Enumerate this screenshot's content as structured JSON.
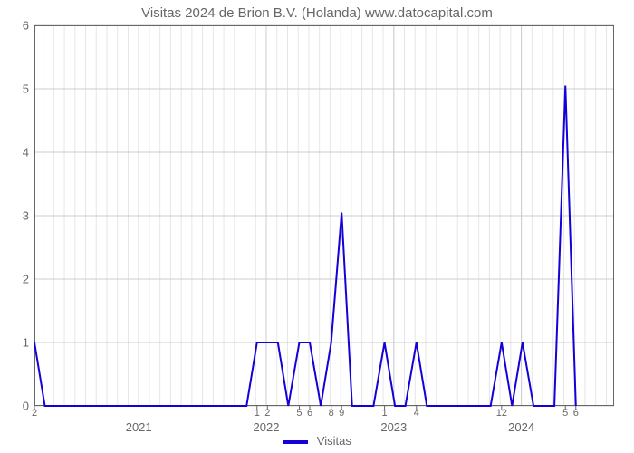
{
  "chart": {
    "type": "line",
    "title": "Visitas 2024 de Brion B.V. (Holanda) www.datocapital.com",
    "title_color": "#666666",
    "title_fontsize": 15,
    "background_color": "#ffffff",
    "plot_border_color": "#666666",
    "plot_border_width": 1,
    "grid": {
      "major_color": "#cccccc",
      "major_width": 1,
      "minor_color": "#e6e6e6",
      "minor_width": 1,
      "x_minor_per_year": 12
    },
    "y_axis": {
      "min": 0,
      "max": 6,
      "ticks": [
        0,
        1,
        2,
        3,
        4,
        5,
        6
      ],
      "tick_label_color": "#666666",
      "tick_fontsize": 13
    },
    "x_axis": {
      "year_ticks": [
        {
          "x": 0.18,
          "label": "2021"
        },
        {
          "x": 0.4,
          "label": "2022"
        },
        {
          "x": 0.62,
          "label": "2023"
        },
        {
          "x": 0.84,
          "label": "2024"
        }
      ],
      "month_ticks": [
        {
          "x": 0.0,
          "label": "2"
        },
        {
          "x": 0.384,
          "label": "1"
        },
        {
          "x": 0.402,
          "label": "2"
        },
        {
          "x": 0.457,
          "label": "5"
        },
        {
          "x": 0.475,
          "label": "6"
        },
        {
          "x": 0.512,
          "label": "8"
        },
        {
          "x": 0.53,
          "label": "9"
        },
        {
          "x": 0.604,
          "label": "1"
        },
        {
          "x": 0.659,
          "label": "4"
        },
        {
          "x": 0.806,
          "label": "12"
        },
        {
          "x": 0.916,
          "label": "5"
        },
        {
          "x": 0.934,
          "label": "6"
        }
      ],
      "tick_label_color": "#666666",
      "tick_fontsize": 11
    },
    "series": {
      "label": "Visitas",
      "color": "#1400d8",
      "line_width": 2,
      "points": [
        {
          "x": 0.0,
          "y": 1.0
        },
        {
          "x": 0.018,
          "y": 0.0
        },
        {
          "x": 0.366,
          "y": 0.0
        },
        {
          "x": 0.384,
          "y": 1.0
        },
        {
          "x": 0.42,
          "y": 1.0
        },
        {
          "x": 0.438,
          "y": 0.0
        },
        {
          "x": 0.457,
          "y": 1.0
        },
        {
          "x": 0.475,
          "y": 1.0
        },
        {
          "x": 0.494,
          "y": 0.0
        },
        {
          "x": 0.512,
          "y": 1.0
        },
        {
          "x": 0.53,
          "y": 3.05
        },
        {
          "x": 0.548,
          "y": 0.0
        },
        {
          "x": 0.585,
          "y": 0.0
        },
        {
          "x": 0.604,
          "y": 1.0
        },
        {
          "x": 0.622,
          "y": 0.0
        },
        {
          "x": 0.64,
          "y": 0.0
        },
        {
          "x": 0.659,
          "y": 1.0
        },
        {
          "x": 0.677,
          "y": 0.0
        },
        {
          "x": 0.787,
          "y": 0.0
        },
        {
          "x": 0.806,
          "y": 1.0
        },
        {
          "x": 0.824,
          "y": 0.0
        },
        {
          "x": 0.842,
          "y": 1.0
        },
        {
          "x": 0.861,
          "y": 0.0
        },
        {
          "x": 0.897,
          "y": 0.0
        },
        {
          "x": 0.916,
          "y": 5.05
        },
        {
          "x": 0.934,
          "y": 0.0
        }
      ]
    },
    "legend": {
      "position": "bottom-center",
      "swatch_width": 28,
      "swatch_height": 4,
      "label_color": "#666666",
      "label_fontsize": 13
    }
  }
}
